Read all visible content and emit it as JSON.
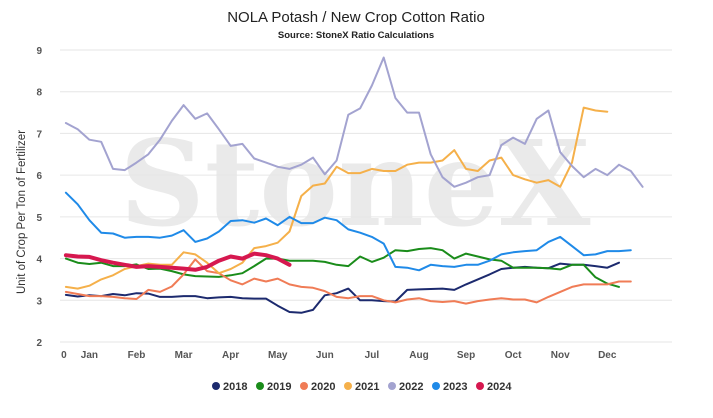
{
  "chart_data": {
    "type": "line",
    "title": "NOLA Potash / New Crop Cotton Ratio",
    "subtitle": "Source: StoneX Ratio Calculations",
    "ylabel": "Unit of Crop Per Ton of Fertilizer",
    "xlabel": "",
    "ylim": [
      2,
      9
    ],
    "yticks": [
      2,
      3,
      4,
      5,
      6,
      7,
      8,
      9
    ],
    "xticks": [
      {
        "label": "0",
        "x": 0
      },
      {
        "label": "Jan",
        "x": 2
      },
      {
        "label": "Feb",
        "x": 6
      },
      {
        "label": "Mar",
        "x": 10
      },
      {
        "label": "Apr",
        "x": 14
      },
      {
        "label": "May",
        "x": 18
      },
      {
        "label": "Jun",
        "x": 22
      },
      {
        "label": "Jul",
        "x": 26
      },
      {
        "label": "Aug",
        "x": 30
      },
      {
        "label": "Sep",
        "x": 34
      },
      {
        "label": "Oct",
        "x": 38
      },
      {
        "label": "Nov",
        "x": 42
      },
      {
        "label": "Dec",
        "x": 46
      }
    ],
    "xlim": [
      -0.5,
      51.5
    ],
    "watermark": "StoneX",
    "grid": true,
    "legend": "bottom",
    "series": [
      {
        "name": "2018",
        "color": "#1c2a6e",
        "width": 2,
        "values": [
          3.13,
          3.09,
          3.12,
          3.1,
          3.15,
          3.12,
          3.17,
          3.16,
          3.08,
          3.08,
          3.1,
          3.1,
          3.05,
          3.07,
          3.08,
          3.05,
          3.04,
          3.04,
          2.87,
          2.72,
          2.7,
          2.77,
          3.12,
          3.17,
          3.28,
          3.0,
          3.0,
          2.98,
          2.97,
          3.25,
          3.26,
          3.27,
          3.28,
          3.25,
          3.38,
          3.5,
          3.62,
          3.75,
          3.78,
          3.8,
          3.78,
          3.77,
          3.88,
          3.85,
          3.85,
          3.82,
          3.78,
          3.9
        ]
      },
      {
        "name": "2019",
        "color": "#1a8c1a",
        "width": 2,
        "values": [
          4.0,
          3.9,
          3.87,
          3.9,
          3.82,
          3.82,
          3.86,
          3.75,
          3.76,
          3.7,
          3.62,
          3.58,
          3.57,
          3.56,
          3.6,
          3.65,
          3.82,
          4.0,
          4.0,
          3.95,
          3.95,
          3.95,
          3.92,
          3.85,
          3.82,
          4.05,
          3.92,
          4.02,
          4.2,
          4.18,
          4.23,
          4.25,
          4.2,
          4.0,
          4.12,
          4.05,
          3.98,
          3.95,
          3.78,
          3.78,
          3.78,
          3.77,
          3.74,
          3.85,
          3.85,
          3.55,
          3.4,
          3.32
        ]
      },
      {
        "name": "2020",
        "color": "#f07c56",
        "width": 2,
        "values": [
          3.2,
          3.15,
          3.1,
          3.1,
          3.08,
          3.05,
          3.03,
          3.25,
          3.2,
          3.33,
          3.62,
          3.98,
          3.7,
          3.65,
          3.48,
          3.38,
          3.52,
          3.45,
          3.52,
          3.38,
          3.32,
          3.3,
          3.22,
          3.08,
          3.05,
          3.1,
          3.1,
          3.0,
          2.95,
          3.02,
          3.05,
          2.98,
          2.96,
          2.98,
          2.92,
          2.98,
          3.02,
          3.05,
          3.02,
          3.02,
          2.95,
          3.08,
          3.2,
          3.32,
          3.38,
          3.38,
          3.38,
          3.45,
          3.45
        ]
      },
      {
        "name": "2021",
        "color": "#f5b04a",
        "width": 2,
        "values": [
          3.32,
          3.28,
          3.35,
          3.5,
          3.6,
          3.75,
          3.82,
          3.88,
          3.85,
          3.85,
          4.15,
          4.1,
          3.9,
          3.65,
          3.75,
          3.9,
          4.25,
          4.3,
          4.38,
          4.65,
          5.5,
          5.75,
          5.8,
          6.2,
          6.05,
          6.05,
          6.15,
          6.1,
          6.1,
          6.25,
          6.3,
          6.3,
          6.35,
          6.6,
          6.15,
          6.1,
          6.35,
          6.42,
          6.0,
          5.9,
          5.82,
          5.88,
          5.72,
          6.3,
          7.62,
          7.55,
          7.52
        ]
      },
      {
        "name": "2022",
        "color": "#a3a3d0",
        "width": 2,
        "values": [
          7.25,
          7.1,
          6.85,
          6.8,
          6.15,
          6.12,
          6.3,
          6.5,
          6.85,
          7.3,
          7.68,
          7.35,
          7.48,
          7.1,
          6.7,
          6.75,
          6.4,
          6.3,
          6.2,
          6.15,
          6.25,
          6.42,
          6.02,
          6.35,
          7.45,
          7.6,
          8.15,
          8.82,
          7.85,
          7.5,
          7.5,
          6.5,
          5.95,
          5.72,
          5.82,
          5.95,
          6.0,
          6.72,
          6.9,
          6.75,
          7.35,
          7.55,
          6.55,
          6.22,
          5.95,
          6.15,
          6.0,
          6.25,
          6.1,
          5.72
        ]
      },
      {
        "name": "2023",
        "color": "#1f8ae8",
        "width": 2,
        "values": [
          5.58,
          5.3,
          4.92,
          4.62,
          4.6,
          4.5,
          4.52,
          4.52,
          4.5,
          4.55,
          4.68,
          4.4,
          4.48,
          4.65,
          4.9,
          4.92,
          4.86,
          4.96,
          4.8,
          5.0,
          4.85,
          4.85,
          4.98,
          4.92,
          4.7,
          4.62,
          4.52,
          4.36,
          3.8,
          3.78,
          3.72,
          3.85,
          3.82,
          3.8,
          3.85,
          3.85,
          3.95,
          4.1,
          4.15,
          4.18,
          4.2,
          4.4,
          4.52,
          4.3,
          4.08,
          4.1,
          4.18,
          4.18,
          4.2
        ]
      },
      {
        "name": "2024",
        "color": "#d6184f",
        "width": 4,
        "values": [
          4.08,
          4.05,
          4.04,
          3.96,
          3.9,
          3.85,
          3.8,
          3.82,
          3.8,
          3.78,
          3.76,
          3.73,
          3.8,
          3.95,
          4.05,
          4.0,
          4.12,
          4.08,
          4.0,
          3.85
        ]
      }
    ]
  }
}
